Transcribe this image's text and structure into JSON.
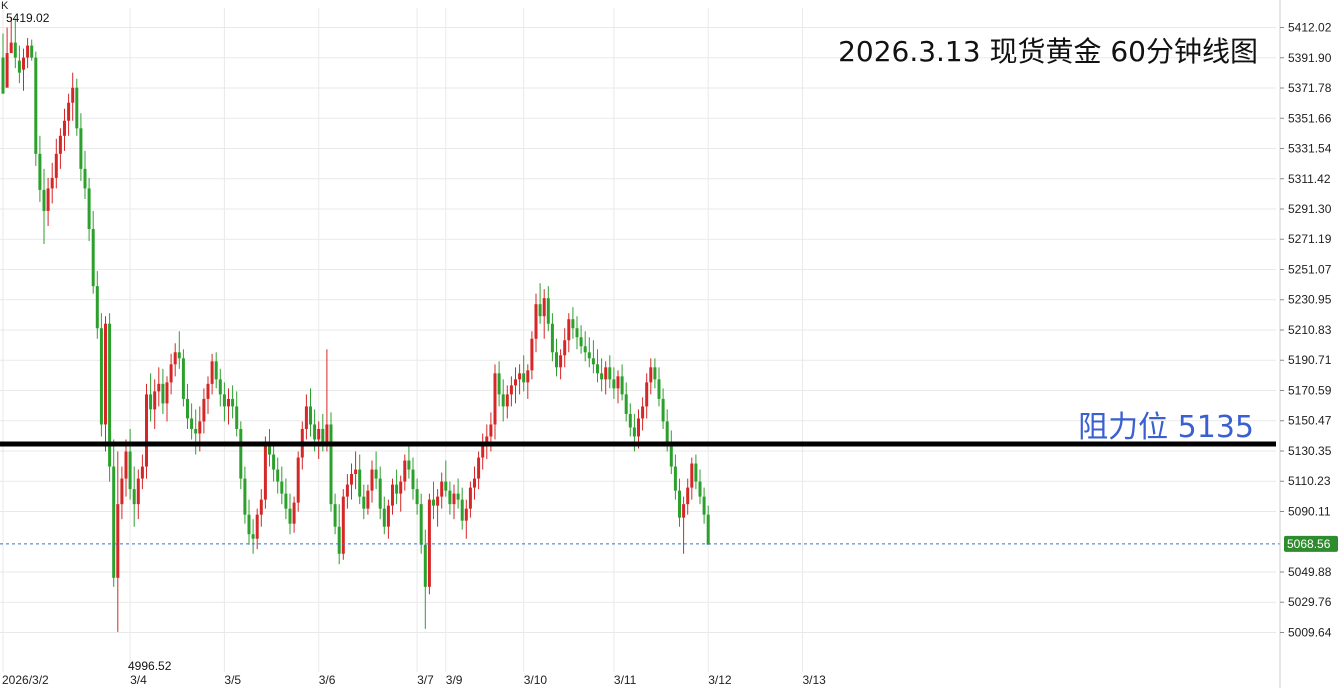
{
  "title": "2026.3.13 现货黄金 60分钟线图",
  "resistance_label": "阻力位 5135",
  "corner_label": "K",
  "high_label": "5419.02",
  "low_label": "4996.52",
  "current_price_label": "5068.56",
  "colors": {
    "up": "#d62728",
    "down": "#2ca02c",
    "grid": "#e9e9e9",
    "resistance": "#000000",
    "current": "#3b6fd4",
    "price_box": "#2e8b2e"
  },
  "chart_data": {
    "type": "candlestick",
    "title": "2026.3.13 现货黄金 60分钟线图",
    "ylim": [
      4990,
      5425
    ],
    "y_ticks": [
      5412.02,
      5391.9,
      5371.78,
      5351.66,
      5331.54,
      5311.42,
      5291.3,
      5271.19,
      5251.07,
      5230.95,
      5210.83,
      5190.71,
      5170.59,
      5150.47,
      5130.35,
      5110.23,
      5090.11,
      5049.88,
      5029.76,
      5009.64
    ],
    "y_tick_labels": [
      "5412.02",
      "5391.90",
      "5371.78",
      "5351.66",
      "5331.54",
      "5311.42",
      "5291.30",
      "5271.19",
      "5251.07",
      "5230.95",
      "5210.83",
      "5190.71",
      "5170.59",
      "5150.47",
      "5130.35",
      "5110.23",
      "5090.11",
      "5049.88",
      "5029.76",
      "5009.64"
    ],
    "x_tick_labels": [
      "2026/3/2",
      "3/4",
      "3/5",
      "3/6",
      "3/7",
      "3/9",
      "3/10",
      "3/11",
      "3/12",
      "3/13"
    ],
    "x_tick_bar_index": [
      0,
      31,
      54,
      77,
      101,
      108,
      127,
      149,
      172,
      195
    ],
    "resistance": 5135,
    "current_price": 5068.56,
    "high": 5419.02,
    "low": 4996.52,
    "bars": [
      [
        5392,
        5408,
        5386,
        5368
      ],
      [
        5372,
        5412,
        5380,
        5395
      ],
      [
        5395,
        5419,
        5398,
        5402
      ],
      [
        5402,
        5418,
        5385,
        5392
      ],
      [
        5390,
        5400,
        5375,
        5382
      ],
      [
        5384,
        5398,
        5370,
        5392
      ],
      [
        5392,
        5405,
        5385,
        5400
      ],
      [
        5400,
        5404,
        5390,
        5392
      ],
      [
        5392,
        5396,
        5320,
        5328
      ],
      [
        5328,
        5340,
        5296,
        5304
      ],
      [
        5304,
        5318,
        5268,
        5290
      ],
      [
        5290,
        5312,
        5280,
        5305
      ],
      [
        5305,
        5322,
        5295,
        5312
      ],
      [
        5312,
        5338,
        5305,
        5328
      ],
      [
        5328,
        5345,
        5318,
        5340
      ],
      [
        5340,
        5358,
        5330,
        5350
      ],
      [
        5350,
        5368,
        5340,
        5362
      ],
      [
        5362,
        5382,
        5350,
        5372
      ],
      [
        5372,
        5378,
        5340,
        5345
      ],
      [
        5345,
        5355,
        5310,
        5318
      ],
      [
        5318,
        5330,
        5298,
        5305
      ],
      [
        5305,
        5312,
        5270,
        5278
      ],
      [
        5278,
        5290,
        5235,
        5240
      ],
      [
        5240,
        5250,
        5205,
        5212
      ],
      [
        5212,
        5222,
        5140,
        5148
      ],
      [
        5148,
        5220,
        5130,
        5215
      ],
      [
        5215,
        5222,
        5110,
        5120
      ],
      [
        5120,
        5138,
        5040,
        5046
      ],
      [
        5046,
        5130,
        5010,
        5095
      ],
      [
        5095,
        5120,
        5085,
        5112
      ],
      [
        5112,
        5138,
        5100,
        5130
      ],
      [
        5130,
        5145,
        5098,
        5105
      ],
      [
        5105,
        5120,
        5080,
        5095
      ],
      [
        5095,
        5118,
        5085,
        5112
      ],
      [
        5112,
        5128,
        5105,
        5120
      ],
      [
        5120,
        5175,
        5112,
        5168
      ],
      [
        5168,
        5182,
        5150,
        5158
      ],
      [
        5158,
        5178,
        5145,
        5170
      ],
      [
        5170,
        5186,
        5160,
        5175
      ],
      [
        5175,
        5185,
        5155,
        5162
      ],
      [
        5162,
        5180,
        5150,
        5176
      ],
      [
        5176,
        5195,
        5168,
        5188
      ],
      [
        5188,
        5202,
        5180,
        5196
      ],
      [
        5196,
        5210,
        5185,
        5192
      ],
      [
        5192,
        5198,
        5160,
        5165
      ],
      [
        5165,
        5175,
        5145,
        5152
      ],
      [
        5152,
        5162,
        5138,
        5145
      ],
      [
        5145,
        5158,
        5128,
        5142
      ],
      [
        5142,
        5160,
        5130,
        5150
      ],
      [
        5150,
        5172,
        5142,
        5165
      ],
      [
        5165,
        5180,
        5155,
        5175
      ],
      [
        5175,
        5195,
        5168,
        5190
      ],
      [
        5190,
        5196,
        5172,
        5178
      ],
      [
        5178,
        5185,
        5160,
        5168
      ],
      [
        5168,
        5176,
        5150,
        5160
      ],
      [
        5160,
        5172,
        5148,
        5165
      ],
      [
        5165,
        5174,
        5152,
        5160
      ],
      [
        5160,
        5170,
        5140,
        5145
      ],
      [
        5145,
        5150,
        5105,
        5112
      ],
      [
        5112,
        5120,
        5082,
        5088
      ],
      [
        5088,
        5098,
        5068,
        5075
      ],
      [
        5075,
        5085,
        5062,
        5072
      ],
      [
        5072,
        5092,
        5065,
        5088
      ],
      [
        5088,
        5105,
        5080,
        5098
      ],
      [
        5098,
        5140,
        5092,
        5135
      ],
      [
        5135,
        5145,
        5120,
        5128
      ],
      [
        5128,
        5135,
        5110,
        5118
      ],
      [
        5118,
        5126,
        5102,
        5110
      ],
      [
        5110,
        5120,
        5095,
        5102
      ],
      [
        5102,
        5112,
        5085,
        5092
      ],
      [
        5092,
        5102,
        5075,
        5082
      ],
      [
        5082,
        5100,
        5076,
        5096
      ],
      [
        5096,
        5130,
        5090,
        5126
      ],
      [
        5126,
        5150,
        5118,
        5145
      ],
      [
        5145,
        5168,
        5138,
        5160
      ],
      [
        5160,
        5172,
        5140,
        5148
      ],
      [
        5148,
        5158,
        5130,
        5138
      ],
      [
        5138,
        5150,
        5125,
        5145
      ],
      [
        5145,
        5155,
        5130,
        5135
      ],
      [
        5135,
        5198,
        5130,
        5148
      ],
      [
        5148,
        5156,
        5090,
        5095
      ],
      [
        5095,
        5102,
        5075,
        5080
      ],
      [
        5080,
        5095,
        5055,
        5062
      ],
      [
        5062,
        5105,
        5058,
        5100
      ],
      [
        5100,
        5115,
        5092,
        5108
      ],
      [
        5108,
        5122,
        5098,
        5115
      ],
      [
        5115,
        5130,
        5105,
        5118
      ],
      [
        5118,
        5128,
        5095,
        5100
      ],
      [
        5100,
        5108,
        5085,
        5092
      ],
      [
        5092,
        5108,
        5088,
        5104
      ],
      [
        5104,
        5124,
        5096,
        5118
      ],
      [
        5118,
        5130,
        5105,
        5112
      ],
      [
        5112,
        5120,
        5085,
        5092
      ],
      [
        5092,
        5100,
        5075,
        5080
      ],
      [
        5080,
        5098,
        5072,
        5094
      ],
      [
        5094,
        5112,
        5088,
        5108
      ],
      [
        5108,
        5118,
        5095,
        5102
      ],
      [
        5102,
        5114,
        5090,
        5110
      ],
      [
        5110,
        5128,
        5104,
        5124
      ],
      [
        5124,
        5136,
        5112,
        5118
      ],
      [
        5118,
        5126,
        5098,
        5105
      ],
      [
        5105,
        5112,
        5088,
        5095
      ],
      [
        5095,
        5102,
        5062,
        5068
      ],
      [
        5068,
        5078,
        5012,
        5040
      ],
      [
        5040,
        5102,
        5035,
        5098
      ],
      [
        5098,
        5110,
        5085,
        5094
      ],
      [
        5094,
        5105,
        5080,
        5100
      ],
      [
        5100,
        5116,
        5092,
        5110
      ],
      [
        5110,
        5124,
        5100,
        5104
      ],
      [
        5104,
        5110,
        5088,
        5095
      ],
      [
        5095,
        5108,
        5085,
        5102
      ],
      [
        5102,
        5112,
        5092,
        5098
      ],
      [
        5098,
        5106,
        5078,
        5084
      ],
      [
        5084,
        5098,
        5072,
        5092
      ],
      [
        5092,
        5110,
        5086,
        5106
      ],
      [
        5106,
        5120,
        5098,
        5112
      ],
      [
        5112,
        5130,
        5105,
        5126
      ],
      [
        5126,
        5142,
        5118,
        5134
      ],
      [
        5134,
        5148,
        5125,
        5140
      ],
      [
        5140,
        5156,
        5130,
        5148
      ],
      [
        5148,
        5188,
        5138,
        5182
      ],
      [
        5182,
        5190,
        5160,
        5168
      ],
      [
        5168,
        5178,
        5150,
        5160
      ],
      [
        5160,
        5174,
        5152,
        5168
      ],
      [
        5168,
        5180,
        5160,
        5174
      ],
      [
        5174,
        5186,
        5162,
        5178
      ],
      [
        5178,
        5188,
        5168,
        5182
      ],
      [
        5182,
        5194,
        5170,
        5176
      ],
      [
        5176,
        5188,
        5165,
        5184
      ],
      [
        5184,
        5210,
        5178,
        5205
      ],
      [
        5205,
        5235,
        5196,
        5228
      ],
      [
        5228,
        5242,
        5215,
        5220
      ],
      [
        5220,
        5238,
        5205,
        5232
      ],
      [
        5232,
        5240,
        5210,
        5215
      ],
      [
        5215,
        5222,
        5190,
        5196
      ],
      [
        5196,
        5205,
        5180,
        5186
      ],
      [
        5186,
        5198,
        5178,
        5194
      ],
      [
        5194,
        5212,
        5186,
        5204
      ],
      [
        5204,
        5222,
        5196,
        5218
      ],
      [
        5218,
        5226,
        5205,
        5212
      ],
      [
        5212,
        5220,
        5198,
        5206
      ],
      [
        5206,
        5214,
        5195,
        5200
      ],
      [
        5200,
        5210,
        5190,
        5196
      ],
      [
        5196,
        5206,
        5186,
        5192
      ],
      [
        5192,
        5204,
        5182,
        5188
      ],
      [
        5188,
        5198,
        5176,
        5182
      ],
      [
        5182,
        5192,
        5170,
        5178
      ],
      [
        5178,
        5190,
        5168,
        5186
      ],
      [
        5186,
        5194,
        5172,
        5178
      ],
      [
        5178,
        5186,
        5165,
        5172
      ],
      [
        5172,
        5184,
        5162,
        5180
      ],
      [
        5180,
        5188,
        5164,
        5168
      ],
      [
        5168,
        5176,
        5150,
        5155
      ],
      [
        5155,
        5162,
        5140,
        5146
      ],
      [
        5146,
        5155,
        5130,
        5140
      ],
      [
        5140,
        5158,
        5132,
        5152
      ],
      [
        5152,
        5166,
        5144,
        5160
      ],
      [
        5160,
        5182,
        5152,
        5176
      ],
      [
        5176,
        5192,
        5168,
        5186
      ],
      [
        5186,
        5192,
        5172,
        5178
      ],
      [
        5178,
        5186,
        5160,
        5165
      ],
      [
        5165,
        5172,
        5145,
        5150
      ],
      [
        5150,
        5158,
        5130,
        5136
      ],
      [
        5136,
        5144,
        5115,
        5120
      ],
      [
        5120,
        5128,
        5098,
        5104
      ],
      [
        5104,
        5112,
        5080,
        5086
      ],
      [
        5086,
        5100,
        5062,
        5095
      ],
      [
        5095,
        5112,
        5088,
        5106
      ],
      [
        5106,
        5126,
        5098,
        5122
      ],
      [
        5122,
        5128,
        5105,
        5110
      ],
      [
        5110,
        5118,
        5095,
        5100
      ],
      [
        5100,
        5106,
        5082,
        5088
      ],
      [
        5088,
        5094,
        5072,
        5068
      ]
    ]
  }
}
